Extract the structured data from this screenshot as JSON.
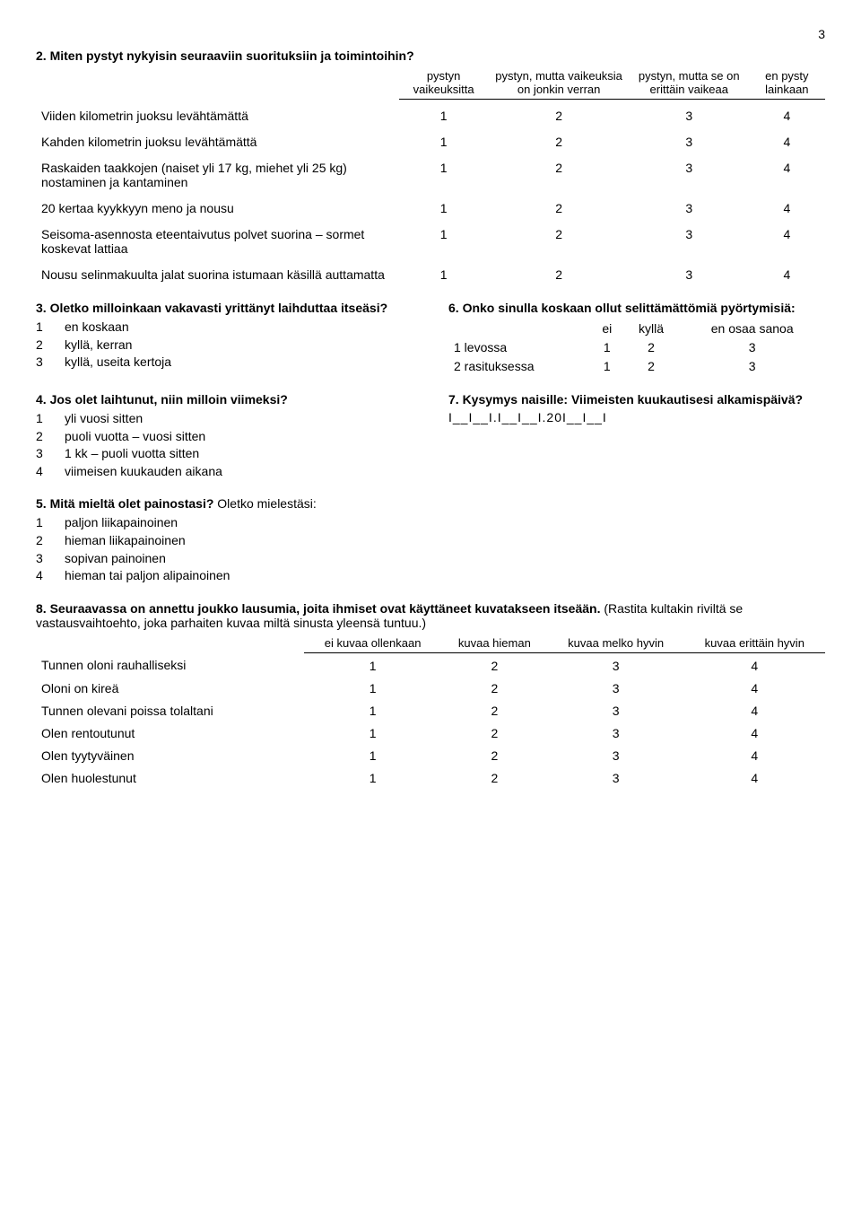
{
  "page_number": "3",
  "q2": {
    "title": "2. Miten pystyt nykyisin seuraaviin suorituksiin ja toimintoihin?",
    "headers": [
      "pystyn vaikeuksitta",
      "pystyn, mutta vaikeuksia on jonkin verran",
      "pystyn, mutta se on erittäin vaikeaa",
      "en pysty lainkaan"
    ],
    "rows": [
      {
        "label": "Viiden kilometrin juoksu levähtämättä",
        "vals": [
          "1",
          "2",
          "3",
          "4"
        ]
      },
      {
        "label": "Kahden kilometrin juoksu levähtämättä",
        "vals": [
          "1",
          "2",
          "3",
          "4"
        ]
      },
      {
        "label": "Raskaiden taakkojen (naiset yli 17 kg, miehet yli 25 kg) nostaminen ja kantaminen",
        "vals": [
          "1",
          "2",
          "3",
          "4"
        ]
      },
      {
        "label": "20 kertaa kyykkyyn meno ja nousu",
        "vals": [
          "1",
          "2",
          "3",
          "4"
        ]
      },
      {
        "label": "Seisoma-asennosta eteentaivutus polvet suorina – sormet koskevat lattiaa",
        "vals": [
          "1",
          "2",
          "3",
          "4"
        ]
      },
      {
        "label": "Nousu selinmakuulta jalat suorina istumaan käsillä auttamatta",
        "vals": [
          "1",
          "2",
          "3",
          "4"
        ]
      }
    ]
  },
  "q3": {
    "title": "3. Oletko milloinkaan vakavasti yrittänyt laihduttaa itseäsi?",
    "options": [
      {
        "n": "1",
        "t": "en koskaan"
      },
      {
        "n": "2",
        "t": "kyllä, kerran"
      },
      {
        "n": "3",
        "t": "kyllä, useita kertoja"
      }
    ]
  },
  "q4": {
    "title": "4. Jos olet laihtunut, niin milloin viimeksi?",
    "options": [
      {
        "n": "1",
        "t": "yli vuosi sitten"
      },
      {
        "n": "2",
        "t": "puoli vuotta – vuosi sitten"
      },
      {
        "n": "3",
        "t": "1 kk – puoli vuotta sitten"
      },
      {
        "n": "4",
        "t": "viimeisen kuukauden aikana"
      }
    ]
  },
  "q5": {
    "title_bold": "5. Mitä mieltä olet painostasi?",
    "title_rest": " Oletko mielestäsi:",
    "options": [
      {
        "n": "1",
        "t": "paljon liikapainoinen"
      },
      {
        "n": "2",
        "t": "hieman liikapainoinen"
      },
      {
        "n": "3",
        "t": "sopivan painoinen"
      },
      {
        "n": "4",
        "t": "hieman tai paljon alipainoinen"
      }
    ]
  },
  "q6": {
    "title": "6. Onko sinulla koskaan ollut selittämättömiä pyörtymisiä:",
    "headers": [
      "ei",
      "kyllä",
      "en osaa sanoa"
    ],
    "rows": [
      {
        "label": "1 levossa",
        "vals": [
          "1",
          "2",
          "3"
        ]
      },
      {
        "label": "2 rasituksessa",
        "vals": [
          "1",
          "2",
          "3"
        ]
      }
    ]
  },
  "q7": {
    "title": "7. Kysymys naisille: Viimeisten kuukautisesi alkamispäivä?",
    "blank": "I__I__I.I__I__I.20I__I__I"
  },
  "q8": {
    "title_bold": "8. Seuraavassa on annettu joukko lausumia, joita ihmiset ovat käyttäneet kuvatakseen itseään.",
    "title_rest": " (Rastita kultakin riviltä se vastausvaihtoehto, joka parhaiten kuvaa miltä sinusta yleensä tuntuu.)",
    "headers": [
      "ei kuvaa ollenkaan",
      "kuvaa hieman",
      "kuvaa melko hyvin",
      "kuvaa erittäin hyvin"
    ],
    "rows": [
      {
        "label": "Tunnen oloni rauhalliseksi",
        "vals": [
          "1",
          "2",
          "3",
          "4"
        ]
      },
      {
        "label": "Oloni on kireä",
        "vals": [
          "1",
          "2",
          "3",
          "4"
        ]
      },
      {
        "label": "Tunnen olevani poissa tolaltani",
        "vals": [
          "1",
          "2",
          "3",
          "4"
        ]
      },
      {
        "label": "Olen rentoutunut",
        "vals": [
          "1",
          "2",
          "3",
          "4"
        ]
      },
      {
        "label": "Olen tyytyväinen",
        "vals": [
          "1",
          "2",
          "3",
          "4"
        ]
      },
      {
        "label": "Olen huolestunut",
        "vals": [
          "1",
          "2",
          "3",
          "4"
        ]
      }
    ]
  }
}
